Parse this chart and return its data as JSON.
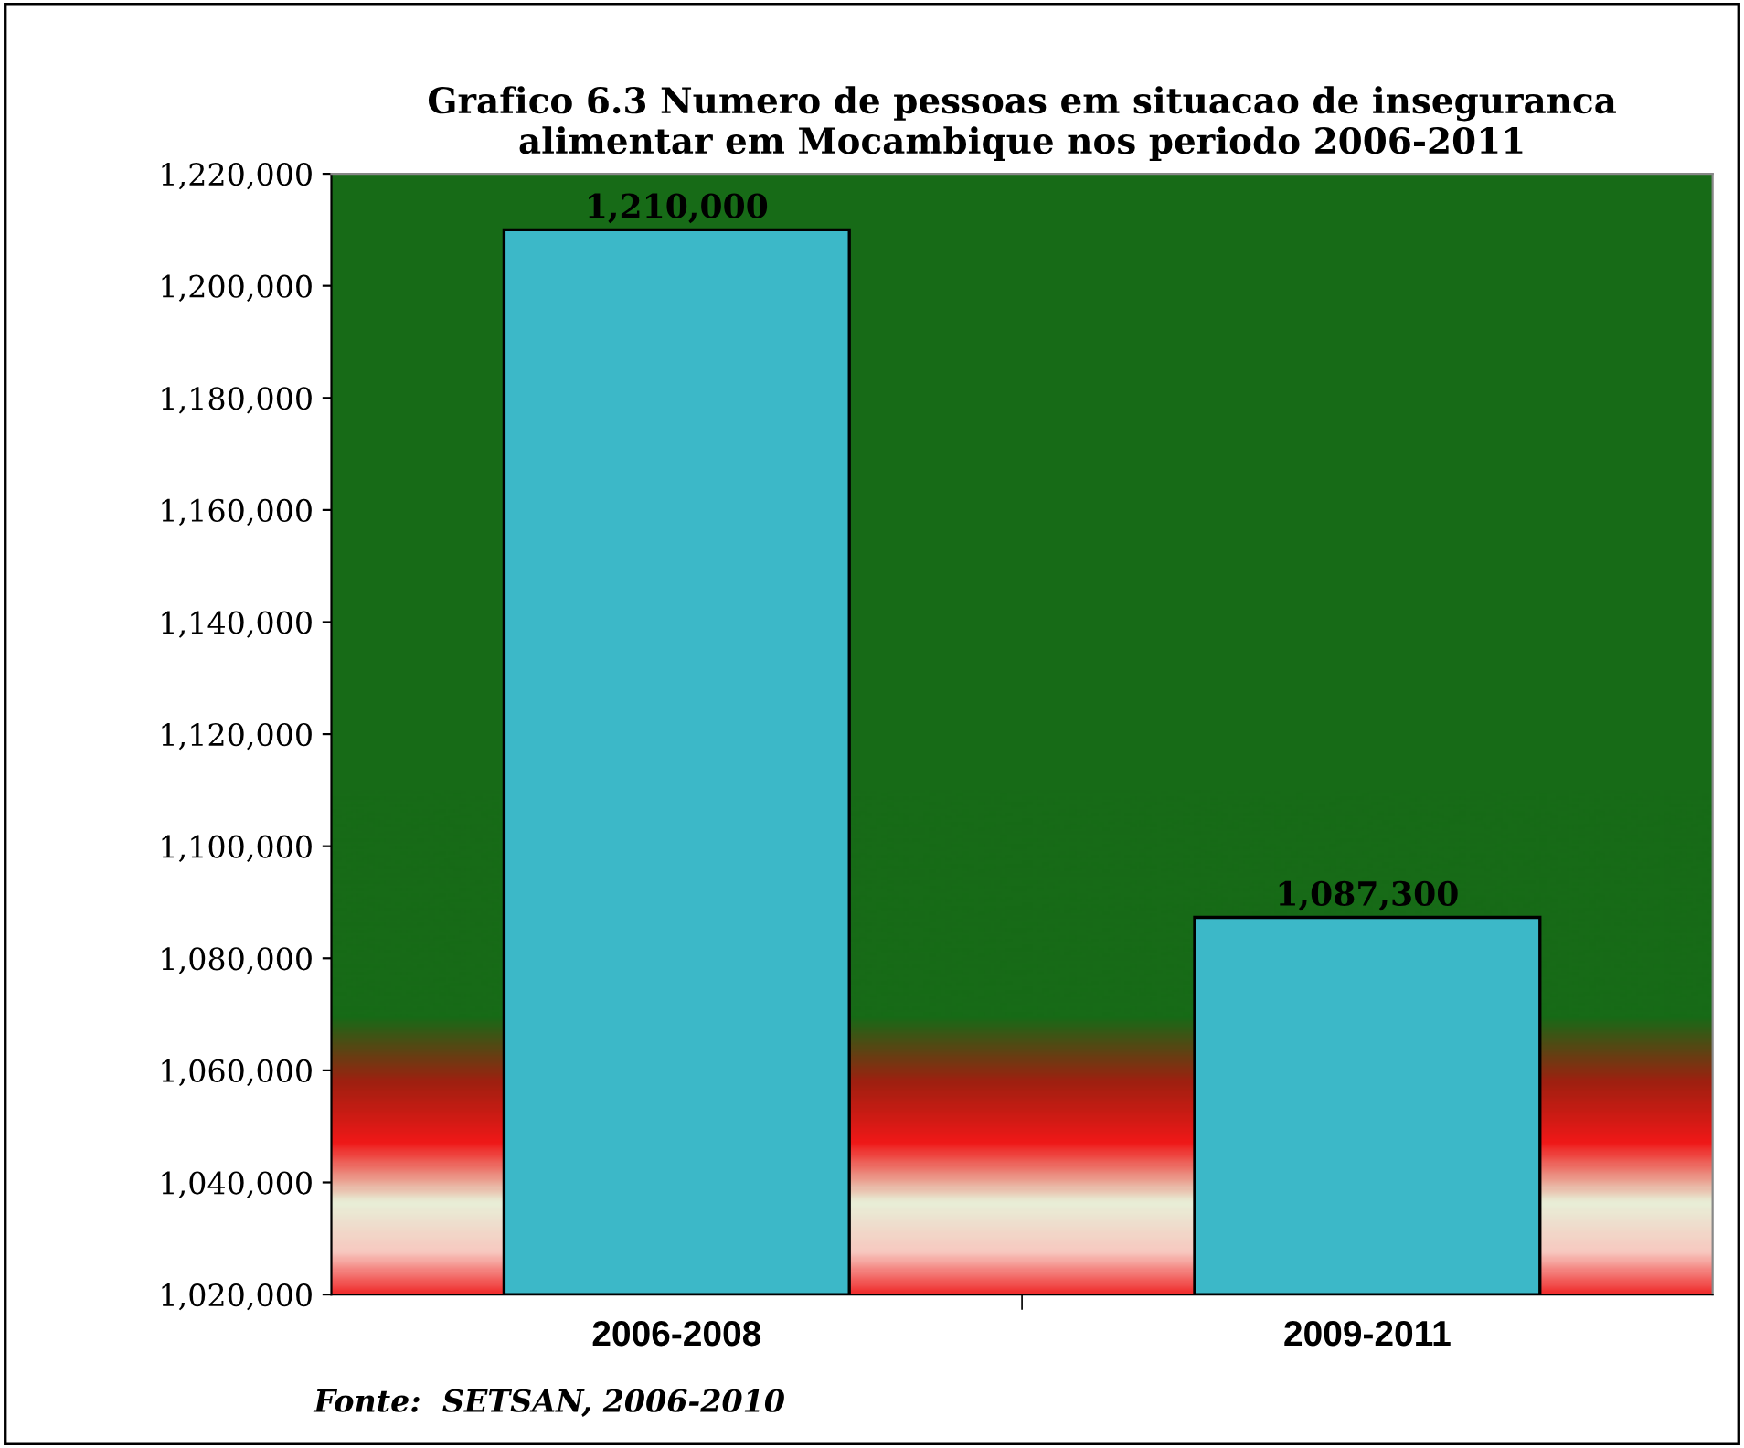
{
  "chart_data": {
    "type": "bar",
    "title": "Grafico 6.3 Numero de pessoas em situacao de inseguranca\nalimentar em Mocambique nos periodo 2006-2011",
    "categories": [
      "2006-2008",
      "2009-2011"
    ],
    "values": [
      1210000,
      1087300
    ],
    "value_labels": [
      "1,210,000",
      "1,087,300"
    ],
    "color": "#3cb8c8",
    "ylim": [
      1020000,
      1220000
    ],
    "yticks": [
      {
        "value": 1020000,
        "label": "1,020,000"
      },
      {
        "value": 1040000,
        "label": "1,040,000"
      },
      {
        "value": 1060000,
        "label": "1,060,000"
      },
      {
        "value": 1080000,
        "label": "1,080,000"
      },
      {
        "value": 1100000,
        "label": "1,100,000"
      },
      {
        "value": 1120000,
        "label": "1,120,000"
      },
      {
        "value": 1140000,
        "label": "1,140,000"
      },
      {
        "value": 1160000,
        "label": "1,160,000"
      },
      {
        "value": 1180000,
        "label": "1,180,000"
      },
      {
        "value": 1200000,
        "label": "1,200,000"
      },
      {
        "value": 1220000,
        "label": "1,220,000"
      }
    ],
    "annotations": [
      "Fonte:  SETSAN, 2006-2010"
    ],
    "grid": false,
    "legend": false
  }
}
